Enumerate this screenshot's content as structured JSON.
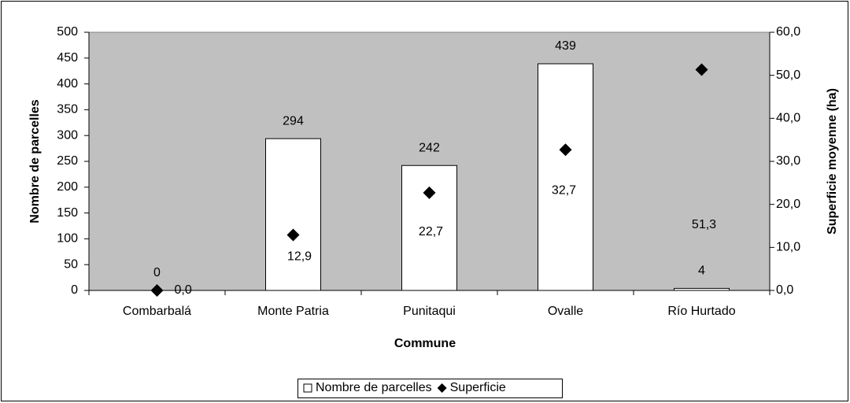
{
  "chart_data": {
    "type": "bar",
    "xlabel": "Commune",
    "ylabel": "Nombre de parcelles",
    "y2label": "Superficie moyenne (ha)",
    "categories": [
      "Combarbalá",
      "Monte Patria",
      "Punitaqui",
      "Ovalle",
      "Río Hurtado"
    ],
    "series": [
      {
        "name": "Nombre de parcelles",
        "type": "bar",
        "color": "#ffffff",
        "values": [
          0,
          294,
          242,
          439,
          4
        ]
      },
      {
        "name": "Superficie",
        "type": "scatter",
        "axis": "y2",
        "color": "#000000",
        "values": [
          0.0,
          12.9,
          22.7,
          32.7,
          51.3
        ],
        "value_labels": [
          "0,0",
          "12,9",
          "22,7",
          "32,7",
          "51,3"
        ]
      }
    ],
    "ylim": [
      0,
      500
    ],
    "yticks": [
      0,
      50,
      100,
      150,
      200,
      250,
      300,
      350,
      400,
      450,
      500
    ],
    "y2lim": [
      0,
      60
    ],
    "y2ticks": [
      {
        "value": 0,
        "label": "0,0"
      },
      {
        "value": 10,
        "label": "10,0"
      },
      {
        "value": 20,
        "label": "20,0"
      },
      {
        "value": 30,
        "label": "30,0"
      },
      {
        "value": 40,
        "label": "40,0"
      },
      {
        "value": 50,
        "label": "50,0"
      },
      {
        "value": 60,
        "label": "60,0"
      }
    ],
    "plot_background": "#c0c0c0",
    "legend": "bottom"
  }
}
